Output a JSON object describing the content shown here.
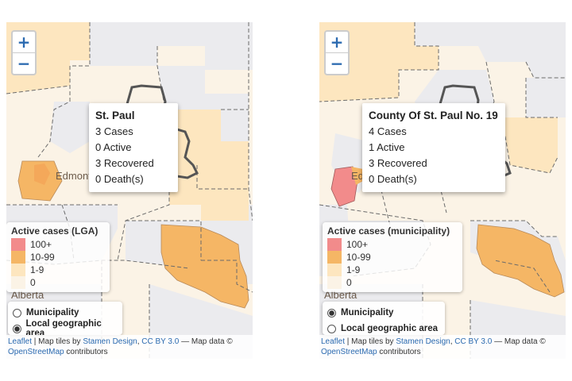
{
  "colors": {
    "tier_100_plus": "#f28b8b",
    "tier_10_99": "#f5b665",
    "tier_1_9": "#fde6bf",
    "tier_0": "#fbf3e6",
    "grey_region": "#ebebee",
    "link": "#2b6ab0"
  },
  "icons": {
    "zoom_in": "+",
    "zoom_out": "−"
  },
  "left": {
    "popup": {
      "title": "St. Paul",
      "lines": [
        "3 Cases",
        "0 Active",
        "3 Recovered",
        "0 Death(s)"
      ]
    },
    "legend": {
      "title": "Active cases (LGA)",
      "items": [
        "100+",
        "10-99",
        "1-9",
        "0"
      ]
    },
    "place_labels": [
      "Edmonton",
      "Alberta"
    ],
    "radio_options": [
      {
        "label": "Municipality",
        "checked": false
      },
      {
        "label": "Local geographic area",
        "checked": true
      }
    ],
    "attribution": {
      "leaflet": "Leaflet",
      "sep1": " | Map tiles by ",
      "stamen": "Stamen Design",
      "comma": ", ",
      "cc": "CC BY 3.0",
      "mid": " — Map data ©",
      "osm": "OpenStreetMap",
      "end": " contributors"
    }
  },
  "right": {
    "popup": {
      "title": "County Of St. Paul No. 19",
      "lines": [
        "4 Cases",
        "1 Active",
        "3 Recovered",
        "0 Death(s)"
      ]
    },
    "legend": {
      "title": "Active cases (municipality)",
      "items": [
        "100+",
        "10-99",
        "1-9",
        "0"
      ]
    },
    "place_labels": [
      "Edmonton",
      "Alberta"
    ],
    "radio_options": [
      {
        "label": "Municipality",
        "checked": true
      },
      {
        "label": "Local geographic area",
        "checked": false
      }
    ],
    "attribution": {
      "leaflet": "Leaflet",
      "sep1": " | Map tiles by ",
      "stamen": "Stamen Design",
      "comma": ", ",
      "cc": "CC BY 3.0",
      "mid": " — Map data ©",
      "osm": "OpenStreetMap",
      "end": " contributors"
    }
  }
}
